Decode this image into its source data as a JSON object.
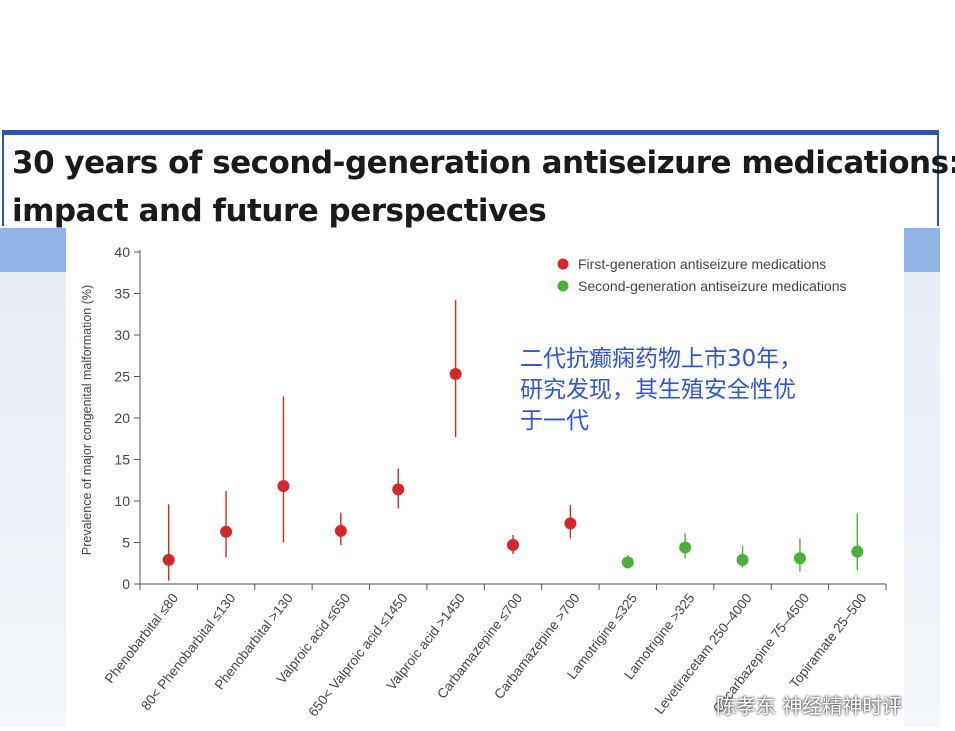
{
  "slide": {
    "title_line1": "30 years of second-generation antiseizure medications:",
    "title_line2": "impact and future perspectives",
    "annotation": "二代抗癫痫药物上市30年，\n研究发现，其生殖安全性优\n于一代",
    "watermark": "陈孝东 神经精神时评",
    "watermark_icon": "wechat-icon"
  },
  "colors": {
    "first_generation": "#d62728",
    "second_generation": "#4caf3a",
    "title_border": "#2f56a6",
    "annotation": "#2f56d6"
  },
  "chart_data": {
    "type": "scatter",
    "title": "",
    "xlabel": "",
    "ylabel": "Prevalence of major congenital malformation (%)",
    "ylim": [
      0,
      40
    ],
    "yticks": [
      0,
      5,
      10,
      15,
      20,
      25,
      30,
      35,
      40
    ],
    "grid": false,
    "legend_position": "top-right",
    "legend": [
      {
        "label": "First-generation antiseizure medications",
        "group": "first"
      },
      {
        "label": "Second-generation antiseizure medications",
        "group": "second"
      }
    ],
    "categories": [
      "Phenobarbital ≤80",
      "80< Phenobarbital ≤130",
      "Phenobarbital >130",
      "Valproic acid ≤650",
      "650< Valproic acid ≤1450",
      "Valproic acid >1450",
      "Carbamazepine ≤700",
      "Carbamazepine >700",
      "Lamotrigine ≤325",
      "Lamotrigine >325",
      "Levetiracetam 250–4000",
      "Oxcarbazepine 75–4500",
      "Topiramate 25–500"
    ],
    "series": [
      {
        "name": "First-generation antiseizure medications",
        "group": "first",
        "points": [
          {
            "category": 0,
            "value": 2.9,
            "low": 0.4,
            "high": 9.6
          },
          {
            "category": 1,
            "value": 6.3,
            "low": 3.2,
            "high": 11.2
          },
          {
            "category": 2,
            "value": 11.8,
            "low": 5.0,
            "high": 22.6
          },
          {
            "category": 3,
            "value": 6.4,
            "low": 4.7,
            "high": 8.6
          },
          {
            "category": 4,
            "value": 11.4,
            "low": 9.1,
            "high": 13.9
          },
          {
            "category": 5,
            "value": 25.3,
            "low": 17.7,
            "high": 34.2
          },
          {
            "category": 6,
            "value": 4.7,
            "low": 3.6,
            "high": 5.9
          },
          {
            "category": 7,
            "value": 7.3,
            "low": 5.5,
            "high": 9.5
          }
        ]
      },
      {
        "name": "Second-generation antiseizure medications",
        "group": "second",
        "points": [
          {
            "category": 8,
            "value": 2.6,
            "low": 2.0,
            "high": 3.5
          },
          {
            "category": 9,
            "value": 4.4,
            "low": 3.1,
            "high": 6.1
          },
          {
            "category": 10,
            "value": 2.9,
            "low": 2.0,
            "high": 4.6
          },
          {
            "category": 11,
            "value": 3.1,
            "low": 1.5,
            "high": 5.5
          },
          {
            "category": 12,
            "value": 3.9,
            "low": 1.7,
            "high": 8.5
          }
        ]
      }
    ]
  }
}
